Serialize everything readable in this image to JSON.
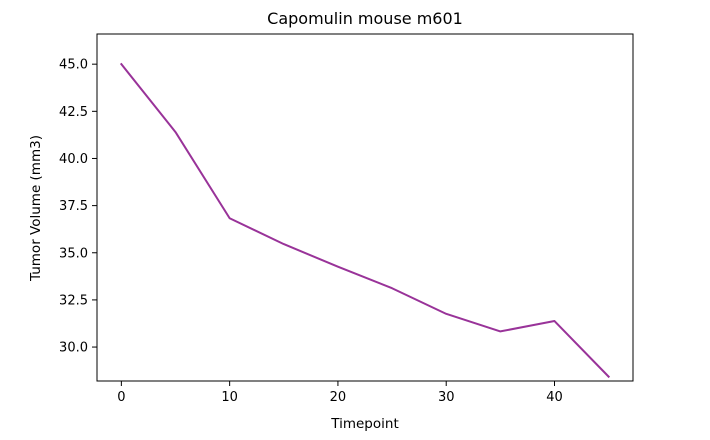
{
  "chart_data": {
    "type": "line",
    "title": "Capomulin mouse m601",
    "xlabel": "Timepoint",
    "ylabel": "Tumor Volume (mm3)",
    "x": [
      0,
      5,
      10,
      15,
      20,
      25,
      30,
      35,
      40,
      45
    ],
    "series": [
      {
        "values": [
          45.0,
          41.4,
          36.83,
          35.46,
          34.26,
          33.12,
          31.76,
          30.83,
          31.38,
          28.43
        ],
        "color": "#993399"
      }
    ],
    "xlim": [
      -2.25,
      47.25
    ],
    "ylim": [
      28.2,
      46.6
    ],
    "xticks": [
      0,
      10,
      20,
      30,
      40
    ],
    "xtick_labels": [
      "0",
      "10",
      "20",
      "30",
      "40"
    ],
    "yticks": [
      30.0,
      32.5,
      35.0,
      37.5,
      40.0,
      42.5,
      45.0
    ],
    "ytick_labels": [
      "30.0",
      "32.5",
      "35.0",
      "37.5",
      "40.0",
      "42.5",
      "45.0"
    ],
    "grid": false,
    "legend": "none"
  }
}
